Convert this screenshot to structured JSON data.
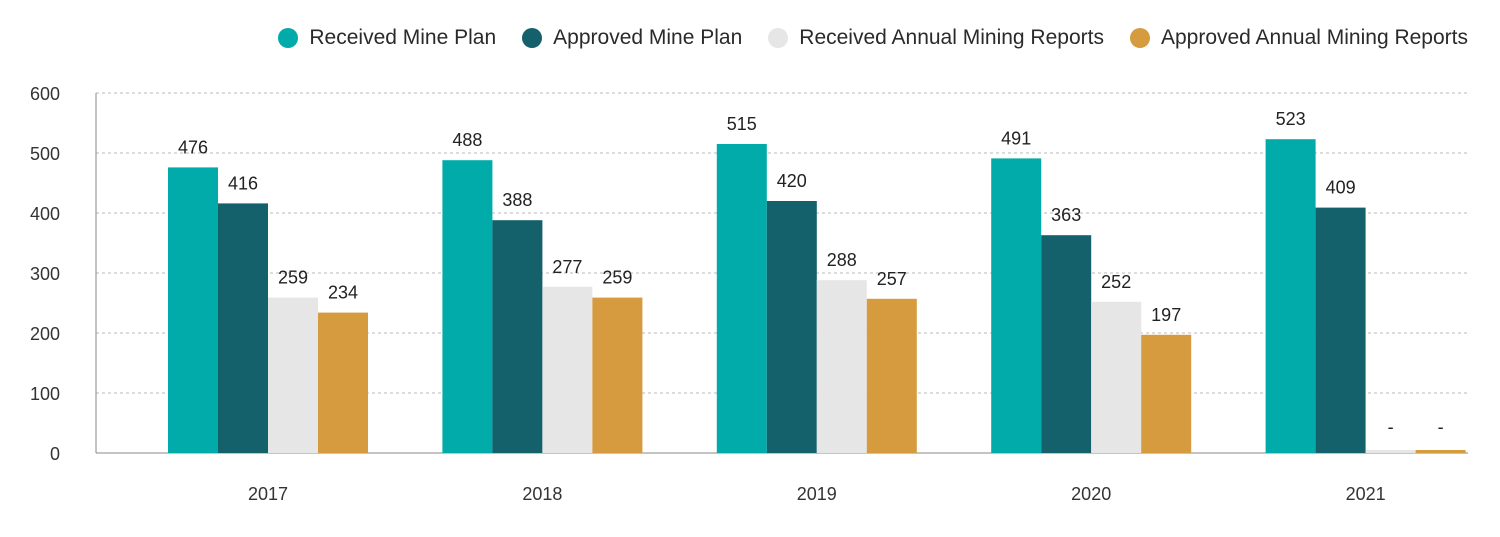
{
  "chart_data": {
    "type": "bar",
    "categories": [
      "2017",
      "2018",
      "2019",
      "2020",
      "2021"
    ],
    "series": [
      {
        "name": "Received Mine Plan",
        "color": "#00ABA9",
        "values": [
          476,
          488,
          515,
          491,
          523
        ],
        "labels": [
          "476",
          "488",
          "515",
          "491",
          "523"
        ]
      },
      {
        "name": "Approved Mine Plan",
        "color": "#14606B",
        "values": [
          416,
          388,
          420,
          363,
          409
        ],
        "labels": [
          "416",
          "388",
          "420",
          "363",
          "409"
        ]
      },
      {
        "name": "Received Annual Mining Reports",
        "color": "#E6E6E6",
        "values": [
          259,
          277,
          288,
          252,
          0
        ],
        "labels": [
          "259",
          "277",
          "288",
          "252",
          "-"
        ]
      },
      {
        "name": "Approved Annual Mining Reports",
        "color": "#D79B3F",
        "values": [
          234,
          259,
          257,
          197,
          0
        ],
        "labels": [
          "234",
          "259",
          "257",
          "197",
          "-"
        ]
      }
    ],
    "yticks": [
      "0",
      "100",
      "200",
      "300",
      "400",
      "500",
      "600"
    ],
    "ylim": [
      0,
      600
    ],
    "grid": true,
    "legend_position": "top-right",
    "title": "",
    "xlabel": "",
    "ylabel": ""
  }
}
